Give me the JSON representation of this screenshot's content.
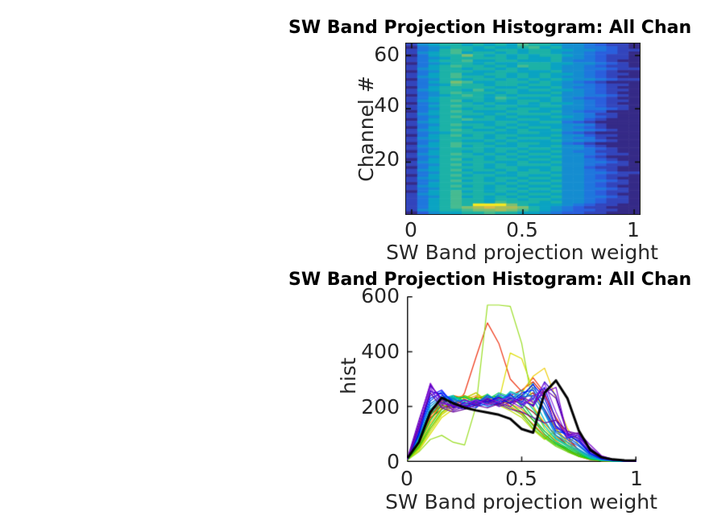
{
  "figure": {
    "background": "#ffffff",
    "axis_color": "#262626",
    "title_color": "#000000"
  },
  "chart_data": [
    {
      "type": "heatmap",
      "title": "SW Band Projection Histogram: All Chan",
      "xlabel": "SW Band projection weight",
      "ylabel": "Channel #",
      "xlim": [
        0,
        1
      ],
      "x_tick_labels": [
        "0",
        "0.5",
        "1"
      ],
      "y_tick_labels": [
        "20",
        "40",
        "60"
      ],
      "n_channels": 64,
      "n_bins": 21,
      "colormap": "parula",
      "palette": [
        "#352a87",
        "#3345bc",
        "#2a5fdd",
        "#1f77dd",
        "#158dd0",
        "#0aa3c2",
        "#1cb2a7",
        "#46bb91",
        "#7dbf70",
        "#aabd55",
        "#d8ba45",
        "#f4e821"
      ],
      "value_encoding": "each char is a hex digit 0-b indexing palette, low-to-high",
      "rows_top_to_bottom": [
        "145665656576654432110",
        "034566565567564433210",
        "134676556656655443211",
        "145675665656654432210",
        "035668656565665432110",
        "134566666565564432110",
        "135667556655564332100",
        "034566565566655443210",
        "135676656576654432110",
        "145665665656654433211",
        "034666556655564432100",
        "135675566565655432110",
        "145676656565654432100",
        "034665665656565443211",
        "135687556665654321000",
        "134576656656654432110",
        "035666665565564332100",
        "145665756656655432110",
        "134676665655564432100",
        "034567656566654433210",
        "135666657655564322100",
        "145675656566564432110",
        "034666565565655432100",
        "135676656655664432110",
        "134665666566554433210",
        "035676555665564322000",
        "145666656566654431100",
        "134675565655565432100",
        "035667665566554421000",
        "145665556655663210000",
        "134676656565554431000",
        "035665665656654321000",
        "145676556565564432100",
        "134566665566553210000",
        "035675656655564421100",
        "145666656566654331000",
        "134665565655564432100",
        "035676656566553210000",
        "145675665565564421000",
        "134666656656654432100",
        "035665656565564331100",
        "145676565656654432110",
        "134666656565564421000",
        "035675656656654432100",
        "145666665565564433210",
        "134675656566654432110",
        "035666656655564421100",
        "145675665656564432100",
        "134666556566654433211",
        "035675665565564432110",
        "145666656656654432100",
        "134675656565564433210",
        "035666665656654432110",
        "145675656565564432100",
        "134666656656654433210",
        "035675656565564432110",
        "145676665656654432100",
        "134675656565564433210",
        "135676656656654432110",
        "135676657666564432110",
        "135676bbb865554321100",
        "1356789a9986543211000",
        "145667889876543221100",
        "024556676655432211000"
      ]
    },
    {
      "type": "line",
      "title": "SW Band Projection Histogram: All Chan",
      "xlabel": "SW Band projection weight",
      "ylabel": "hist",
      "xlim": [
        0,
        1
      ],
      "ylim": [
        0,
        600
      ],
      "x_tick_labels": [
        "0",
        "0.5",
        "1"
      ],
      "y_tick_labels": [
        "0",
        "200",
        "400",
        "600"
      ],
      "x_start": 0,
      "x_step": 0.05,
      "legend": "none",
      "series": [
        {
          "color": "#881100",
          "line_width": 1.2,
          "values": [
            10,
            85,
            160,
            190,
            210,
            200,
            220,
            210,
            205,
            225,
            210,
            180,
            140,
            95,
            60,
            28,
            10,
            3,
            1,
            0,
            0
          ]
        },
        {
          "color": "#aa0000",
          "line_width": 1.2,
          "values": [
            12,
            95,
            175,
            205,
            195,
            215,
            205,
            220,
            230,
            215,
            225,
            250,
            190,
            120,
            70,
            32,
            12,
            4,
            1,
            1,
            0
          ]
        },
        {
          "color": "#dd1100",
          "line_width": 1.2,
          "values": [
            11,
            90,
            180,
            215,
            225,
            205,
            235,
            225,
            215,
            240,
            260,
            290,
            240,
            160,
            90,
            40,
            14,
            5,
            2,
            1,
            0
          ]
        },
        {
          "color": "#ee3311",
          "line_width": 1.2,
          "values": [
            10,
            80,
            170,
            200,
            190,
            250,
            380,
            505,
            430,
            300,
            255,
            305,
            250,
            150,
            80,
            40,
            18,
            8,
            3,
            1,
            1
          ]
        },
        {
          "color": "#ff6600",
          "line_width": 1.2,
          "values": [
            9,
            75,
            165,
            220,
            240,
            230,
            250,
            215,
            235,
            200,
            175,
            135,
            95,
            65,
            40,
            18,
            6,
            2,
            1,
            0,
            0
          ]
        },
        {
          "color": "#ff8800",
          "line_width": 1.2,
          "values": [
            8,
            70,
            155,
            210,
            230,
            240,
            220,
            235,
            225,
            210,
            190,
            150,
            110,
            75,
            45,
            22,
            8,
            2,
            1,
            0,
            0
          ]
        },
        {
          "color": "#ffaa00",
          "line_width": 1.2,
          "values": [
            7,
            60,
            140,
            195,
            215,
            225,
            240,
            230,
            210,
            230,
            245,
            200,
            140,
            90,
            55,
            30,
            10,
            3,
            1,
            0,
            0
          ]
        },
        {
          "color": "#eecc00",
          "line_width": 1.2,
          "values": [
            6,
            50,
            120,
            175,
            205,
            195,
            215,
            225,
            235,
            215,
            250,
            310,
            340,
            230,
            120,
            60,
            20,
            6,
            2,
            1,
            0
          ]
        },
        {
          "color": "#dddd00",
          "line_width": 1.2,
          "values": [
            5,
            40,
            100,
            160,
            190,
            210,
            230,
            240,
            220,
            395,
            375,
            260,
            180,
            120,
            70,
            35,
            12,
            4,
            2,
            1,
            0
          ]
        },
        {
          "color": "#bbdd00",
          "line_width": 1.2,
          "values": [
            6,
            45,
            110,
            170,
            200,
            230,
            250,
            220,
            205,
            185,
            160,
            115,
            80,
            115,
            60,
            30,
            10,
            4,
            1,
            0,
            0
          ]
        },
        {
          "color": "#99dd22",
          "line_width": 1.2,
          "values": [
            5,
            35,
            80,
            95,
            70,
            60,
            200,
            570,
            570,
            565,
            430,
            200,
            120,
            80,
            60,
            105,
            40,
            10,
            3,
            1,
            0
          ]
        },
        {
          "color": "#66cc00",
          "line_width": 1.2,
          "values": [
            7,
            50,
            120,
            180,
            210,
            240,
            225,
            245,
            215,
            195,
            170,
            120,
            85,
            55,
            35,
            18,
            7,
            2,
            1,
            0,
            0
          ]
        },
        {
          "color": "#33cc00",
          "line_width": 1.2,
          "values": [
            6,
            55,
            130,
            190,
            225,
            235,
            215,
            230,
            240,
            210,
            180,
            130,
            90,
            60,
            40,
            20,
            8,
            3,
            1,
            0,
            0
          ]
        },
        {
          "color": "#00cc22",
          "line_width": 1.2,
          "values": [
            8,
            65,
            150,
            205,
            240,
            220,
            230,
            210,
            225,
            245,
            200,
            150,
            100,
            65,
            45,
            25,
            9,
            3,
            1,
            0,
            0
          ]
        },
        {
          "color": "#00cc66",
          "line_width": 1.2,
          "values": [
            7,
            75,
            170,
            215,
            230,
            235,
            215,
            225,
            250,
            235,
            215,
            160,
            110,
            70,
            50,
            30,
            10,
            4,
            1,
            1,
            0
          ]
        },
        {
          "color": "#00ccaa",
          "line_width": 1.2,
          "values": [
            10,
            80,
            180,
            225,
            235,
            220,
            210,
            245,
            215,
            255,
            240,
            190,
            130,
            80,
            55,
            35,
            12,
            4,
            2,
            1,
            0
          ]
        },
        {
          "color": "#00bbcc",
          "line_width": 1.2,
          "values": [
            8,
            85,
            190,
            230,
            240,
            205,
            220,
            215,
            240,
            225,
            260,
            230,
            150,
            85,
            60,
            40,
            15,
            5,
            2,
            1,
            0
          ]
        },
        {
          "color": "#0099dd",
          "line_width": 1.2,
          "values": [
            9,
            90,
            200,
            235,
            225,
            215,
            205,
            235,
            225,
            240,
            230,
            285,
            175,
            95,
            70,
            45,
            18,
            6,
            2,
            1,
            0
          ]
        },
        {
          "color": "#0077e6",
          "line_width": 1.2,
          "values": [
            7,
            105,
            210,
            240,
            230,
            210,
            220,
            200,
            215,
            250,
            235,
            240,
            180,
            105,
            80,
            55,
            22,
            8,
            3,
            1,
            0
          ]
        },
        {
          "color": "#0055ee",
          "line_width": 1.2,
          "values": [
            10,
            95,
            220,
            255,
            215,
            225,
            200,
            210,
            245,
            230,
            215,
            270,
            210,
            125,
            90,
            60,
            25,
            8,
            3,
            1,
            1
          ]
        },
        {
          "color": "#0033ff",
          "line_width": 1.2,
          "values": [
            9,
            110,
            230,
            250,
            220,
            195,
            210,
            240,
            220,
            215,
            250,
            260,
            190,
            110,
            100,
            70,
            28,
            10,
            4,
            2,
            1
          ]
        },
        {
          "color": "#1a1aff",
          "line_width": 1.2,
          "values": [
            11,
            125,
            240,
            260,
            210,
            205,
            195,
            230,
            205,
            245,
            205,
            230,
            270,
            150,
            85,
            95,
            40,
            14,
            6,
            3,
            1
          ]
        },
        {
          "color": "#0000e6",
          "line_width": 1.2,
          "values": [
            8,
            100,
            255,
            245,
            200,
            190,
            225,
            215,
            235,
            210,
            240,
            280,
            230,
            130,
            95,
            75,
            30,
            10,
            4,
            2,
            1
          ]
        },
        {
          "color": "#3300cc",
          "line_width": 1.2,
          "values": [
            10,
            115,
            275,
            230,
            195,
            215,
            205,
            225,
            210,
            230,
            220,
            205,
            290,
            240,
            105,
            80,
            35,
            12,
            5,
            2,
            1
          ]
        },
        {
          "color": "#5d00b8",
          "line_width": 1.2,
          "values": [
            12,
            150,
            280,
            225,
            185,
            200,
            215,
            220,
            200,
            215,
            230,
            200,
            265,
            230,
            100,
            85,
            50,
            18,
            7,
            3,
            1
          ]
        },
        {
          "color": "#6f10d0",
          "line_width": 1.2,
          "values": [
            9,
            130,
            260,
            210,
            205,
            195,
            220,
            210,
            230,
            220,
            195,
            240,
            255,
            120,
            110,
            90,
            40,
            12,
            5,
            2,
            1
          ]
        },
        {
          "color": "#7a00cc",
          "line_width": 1.2,
          "values": [
            10,
            140,
            285,
            215,
            200,
            225,
            210,
            230,
            215,
            200,
            235,
            215,
            250,
            270,
            95,
            105,
            60,
            20,
            8,
            4,
            2
          ]
        },
        {
          "color": "#8a2be2",
          "line_width": 1.2,
          "values": [
            8,
            120,
            270,
            200,
            190,
            210,
            225,
            205,
            220,
            235,
            210,
            225,
            285,
            180,
            90,
            100,
            45,
            15,
            6,
            3,
            2
          ]
        },
        {
          "color": "#660099",
          "line_width": 1.2,
          "values": [
            8,
            125,
            250,
            195,
            180,
            190,
            205,
            195,
            210,
            190,
            180,
            160,
            140,
            150,
            110,
            100,
            45,
            14,
            5,
            2,
            1
          ]
        },
        {
          "color": "#000000",
          "line_width": 3,
          "values": [
            12,
            70,
            180,
            232,
            212,
            196,
            186,
            178,
            170,
            155,
            118,
            105,
            250,
            295,
            230,
            112,
            42,
            15,
            7,
            4,
            3
          ]
        }
      ]
    }
  ]
}
